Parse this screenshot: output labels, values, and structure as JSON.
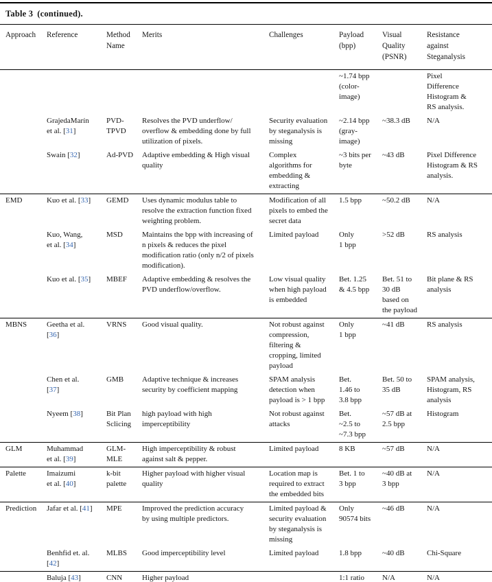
{
  "title": {
    "label": "Table 3",
    "continued": "(continued)."
  },
  "colors": {
    "cite": "#3566b0",
    "text": "#151515",
    "rule": "#000000"
  },
  "table": {
    "columns": [
      {
        "key": "approach",
        "label": "Approach"
      },
      {
        "key": "reference",
        "label": "Reference"
      },
      {
        "key": "method",
        "label": "Method\nName"
      },
      {
        "key": "merits",
        "label": "Merits"
      },
      {
        "key": "challenges",
        "label": "Challenges"
      },
      {
        "key": "payload",
        "label": "Payload\n(bpp)"
      },
      {
        "key": "visual",
        "label": "Visual\nQuality\n(PSNR)"
      },
      {
        "key": "resistance",
        "label": "Resistance\nagainst\nSteganalysis"
      }
    ],
    "rows": [
      {
        "approach": "",
        "reference": "",
        "method": "",
        "merits": "",
        "challenges": "",
        "payload": "~1.74 bpp\n(color-\nimage)",
        "visual": "",
        "resistance": "Pixel\nDifference\nHistogram &\nRS analysis.",
        "group_start": false
      },
      {
        "approach": "",
        "reference": "GrajedaMarín\net al. [31]",
        "method": "PVD-\nTPVD",
        "merits": "Resolves the PVD underflow/\noverflow & embedding done by full\nutilization of pixels.",
        "challenges": "Security evaluation\nby steganalysis is\nmissing",
        "payload": "~2.14 bpp\n(gray-\nimage)",
        "visual": "~38.3 dB",
        "resistance": "N/A",
        "group_start": false
      },
      {
        "approach": "",
        "reference": "Swain [32]",
        "method": "Ad-PVD",
        "merits": "Adaptive embedding & High visual\nquality",
        "challenges": "Complex\nalgorithms for\nembedding &\nextracting",
        "payload": "~3 bits per\nbyte",
        "visual": "~43 dB",
        "resistance": "Pixel Difference\nHistogram & RS\nanalysis.",
        "group_start": false
      },
      {
        "approach": "EMD",
        "reference": "Kuo et al. [33]",
        "method": "GEMD",
        "merits": "Uses dynamic modulus table to\nresolve the extraction function fixed\nweighting problem.",
        "challenges": "Modification of all\npixels to embed the\nsecret data",
        "payload": "1.5 bpp",
        "visual": "~50.2 dB",
        "resistance": "N/A",
        "group_start": true
      },
      {
        "approach": "",
        "reference": "Kuo, Wang,\net al. [34]",
        "method": "MSD",
        "merits": "Maintains the bpp with increasing of\nn pixels & reduces the pixel\nmodification ratio (only n/2 of pixels\nmodification).",
        "challenges": "Limited payload",
        "payload": "Only\n1 bpp",
        "visual": ">52 dB",
        "resistance": "RS analysis",
        "group_start": false
      },
      {
        "approach": "",
        "reference": "Kuo et al. [35]",
        "method": "MBEF",
        "merits": "Adaptive embedding & resolves the\nPVD underflow/overflow.",
        "challenges": "Low visual quality\nwhen high payload\nis embedded",
        "payload": "Bet. 1.25\n& 4.5 bpp",
        "visual": "Bet. 51 to\n30 dB\nbased on\nthe payload",
        "resistance": "Bit plane & RS\nanalysis",
        "group_start": false
      },
      {
        "approach": "MBNS",
        "reference": "Geetha et al.\n[36]",
        "method": "VRNS",
        "merits": "Good visual quality.",
        "challenges": "Not robust against\ncompression,\nfiltering &\ncropping, limited\npayload",
        "payload": "Only\n1 bpp",
        "visual": "~41 dB",
        "resistance": "RS analysis",
        "group_start": true
      },
      {
        "approach": "",
        "reference": "Chen et al.\n[37]",
        "method": "GMB",
        "merits": "Adaptive technique & increases\nsecurity by coefficient mapping",
        "challenges": "SPAM analysis\ndetection when\npayload is > 1 bpp",
        "payload": "Bet.\n1.46 to\n3.8 bpp",
        "visual": "Bet. 50 to\n35 dB",
        "resistance": "SPAM analysis,\nHistogram, RS\nanalysis",
        "group_start": false
      },
      {
        "approach": "",
        "reference": "Nyeem [38]",
        "method": "Bit Plan\nSclicing",
        "merits": "high payload with high\nimperceptibility",
        "challenges": "Not robust against\nattacks",
        "payload": "Bet.\n~2.5 to\n~7.3 bpp",
        "visual": "~57 dB at\n2.5 bpp",
        "resistance": "Histogram",
        "group_start": false
      },
      {
        "approach": "GLM",
        "reference": "Muhammad\net al. [39]",
        "method": "GLM-\nMLE",
        "merits": "High imperceptibility & robust\nagainst salt & pepper.",
        "challenges": "Limited payload",
        "payload": "8 KB",
        "visual": "~57 dB",
        "resistance": "N/A",
        "group_start": true
      },
      {
        "approach": "Palette",
        "reference": "Imaizumi\net al. [40]",
        "method": "k-bit\npalette",
        "merits": "Higher payload with higher visual\nquality",
        "challenges": "Location map is\nrequired to extract\nthe embedded bits",
        "payload": "Bet. 1 to\n3 bpp",
        "visual": "~40 dB at\n3 bpp",
        "resistance": "N/A",
        "group_start": true
      },
      {
        "approach": "Prediction",
        "reference": "Jafar et al. [41]",
        "method": "MPE",
        "merits": "Improved the prediction accuracy\nby using multiple predictors.",
        "challenges": "Limited payload &\nsecurity evaluation\nby steganalysis is\nmissing",
        "payload": "Only\n90574 bits",
        "visual": "~46 dB",
        "resistance": "N/A",
        "group_start": true
      },
      {
        "approach": "",
        "reference": "Benhfid et. al.\n[42]",
        "method": "MLBS",
        "merits": "Good imperceptibility level",
        "challenges": "Limited payload",
        "payload": "1.8 bpp",
        "visual": "~40 dB",
        "resistance": "Chi-Square",
        "group_start": false
      },
      {
        "approach": "",
        "reference": "Baluja [43]",
        "method": "CNN",
        "merits": "Higher payload",
        "challenges": "",
        "payload": "1:1 ratio",
        "visual": "N/A",
        "resistance": "N/A",
        "group_start": true
      }
    ]
  }
}
